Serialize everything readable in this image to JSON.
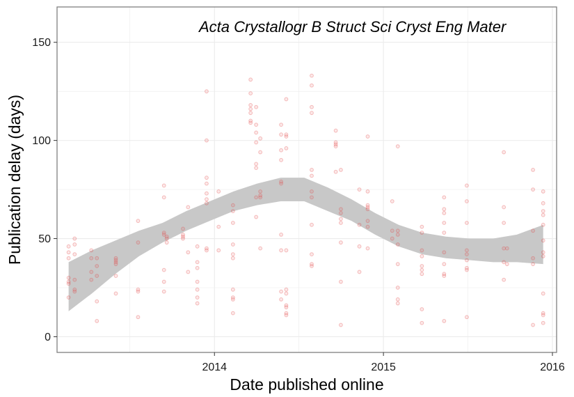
{
  "chart_data": {
    "type": "scatter",
    "title": "Acta Crystallogr B Struct Sci Cryst Eng Mater",
    "xlabel": "Date published online",
    "ylabel": "Publication delay (days)",
    "xlim": [
      "2013-01-26",
      "2016-01-10"
    ],
    "ylim": [
      -8,
      168
    ],
    "x_ticks": [
      {
        "value": "2014-01-01",
        "label": "2014"
      },
      {
        "value": "2015-01-01",
        "label": "2015"
      },
      {
        "value": "2016-01-01",
        "label": "2016"
      }
    ],
    "y_ticks": [
      0,
      50,
      100,
      150
    ],
    "grid": true,
    "legend": "none",
    "colors": {
      "points": "#e34a4a",
      "band": "#c8c8c8",
      "grid": "#ebebeb",
      "border": "#7f7f7f"
    },
    "series": [
      {
        "kind": "points",
        "points": [
          [
            "2013-02-20",
            46
          ],
          [
            "2013-02-20",
            43
          ],
          [
            "2013-02-20",
            40
          ],
          [
            "2013-02-20",
            30
          ],
          [
            "2013-02-20",
            28
          ],
          [
            "2013-02-20",
            27
          ],
          [
            "2013-02-20",
            20
          ],
          [
            "2013-03-05",
            50
          ],
          [
            "2013-03-05",
            47
          ],
          [
            "2013-03-05",
            42
          ],
          [
            "2013-03-05",
            29
          ],
          [
            "2013-03-05",
            24
          ],
          [
            "2013-03-05",
            23
          ],
          [
            "2013-04-10",
            44
          ],
          [
            "2013-04-10",
            40
          ],
          [
            "2013-04-10",
            33
          ],
          [
            "2013-04-10",
            29
          ],
          [
            "2013-04-22",
            40
          ],
          [
            "2013-04-22",
            36
          ],
          [
            "2013-04-22",
            31
          ],
          [
            "2013-04-22",
            18
          ],
          [
            "2013-04-22",
            8
          ],
          [
            "2013-06-02",
            40
          ],
          [
            "2013-06-02",
            39
          ],
          [
            "2013-06-02",
            38
          ],
          [
            "2013-06-02",
            37
          ],
          [
            "2013-06-02",
            31
          ],
          [
            "2013-06-02",
            22
          ],
          [
            "2013-07-20",
            59
          ],
          [
            "2013-07-20",
            48
          ],
          [
            "2013-07-20",
            24
          ],
          [
            "2013-07-20",
            23
          ],
          [
            "2013-07-20",
            10
          ],
          [
            "2013-09-14",
            77
          ],
          [
            "2013-09-14",
            71
          ],
          [
            "2013-09-14",
            53
          ],
          [
            "2013-09-14",
            52
          ],
          [
            "2013-09-14",
            34
          ],
          [
            "2013-09-14",
            28
          ],
          [
            "2013-09-14",
            23
          ],
          [
            "2013-09-20",
            51
          ],
          [
            "2013-09-20",
            50
          ],
          [
            "2013-09-20",
            48
          ],
          [
            "2013-10-25",
            55
          ],
          [
            "2013-10-25",
            52
          ],
          [
            "2013-10-25",
            51
          ],
          [
            "2013-10-25",
            50
          ],
          [
            "2013-11-05",
            66
          ],
          [
            "2013-11-05",
            43
          ],
          [
            "2013-11-05",
            33
          ],
          [
            "2013-11-25",
            46
          ],
          [
            "2013-11-25",
            38
          ],
          [
            "2013-11-25",
            35
          ],
          [
            "2013-11-25",
            28
          ],
          [
            "2013-11-25",
            24
          ],
          [
            "2013-11-25",
            20
          ],
          [
            "2013-11-25",
            17
          ],
          [
            "2013-12-15",
            125
          ],
          [
            "2013-12-15",
            100
          ],
          [
            "2013-12-15",
            81
          ],
          [
            "2013-12-15",
            78
          ],
          [
            "2013-12-15",
            73
          ],
          [
            "2013-12-15",
            70
          ],
          [
            "2013-12-15",
            68
          ],
          [
            "2013-12-15",
            45
          ],
          [
            "2013-12-15",
            44
          ],
          [
            "2014-01-10",
            74
          ],
          [
            "2014-01-10",
            56
          ],
          [
            "2014-01-10",
            44
          ],
          [
            "2014-02-10",
            67
          ],
          [
            "2014-02-10",
            64
          ],
          [
            "2014-02-10",
            58
          ],
          [
            "2014-02-10",
            47
          ],
          [
            "2014-02-10",
            42
          ],
          [
            "2014-02-10",
            40
          ],
          [
            "2014-02-10",
            24
          ],
          [
            "2014-02-10",
            20
          ],
          [
            "2014-02-10",
            19
          ],
          [
            "2014-02-10",
            12
          ],
          [
            "2014-03-20",
            131
          ],
          [
            "2014-03-20",
            124
          ],
          [
            "2014-03-20",
            118
          ],
          [
            "2014-03-20",
            116
          ],
          [
            "2014-03-20",
            114
          ],
          [
            "2014-03-20",
            110
          ],
          [
            "2014-03-20",
            109
          ],
          [
            "2014-04-01",
            117
          ],
          [
            "2014-04-01",
            108
          ],
          [
            "2014-04-01",
            104
          ],
          [
            "2014-04-01",
            99
          ],
          [
            "2014-04-01",
            88
          ],
          [
            "2014-04-01",
            86
          ],
          [
            "2014-04-01",
            71
          ],
          [
            "2014-04-01",
            61
          ],
          [
            "2014-04-10",
            101
          ],
          [
            "2014-04-10",
            94
          ],
          [
            "2014-04-10",
            74
          ],
          [
            "2014-04-10",
            72
          ],
          [
            "2014-04-10",
            71
          ],
          [
            "2014-04-10",
            45
          ],
          [
            "2014-05-25",
            108
          ],
          [
            "2014-05-25",
            103
          ],
          [
            "2014-05-25",
            95
          ],
          [
            "2014-05-25",
            90
          ],
          [
            "2014-05-25",
            79
          ],
          [
            "2014-05-25",
            78
          ],
          [
            "2014-05-25",
            52
          ],
          [
            "2014-05-25",
            44
          ],
          [
            "2014-05-25",
            23
          ],
          [
            "2014-05-25",
            19
          ],
          [
            "2014-06-05",
            121
          ],
          [
            "2014-06-05",
            103
          ],
          [
            "2014-06-05",
            102
          ],
          [
            "2014-06-05",
            96
          ],
          [
            "2014-06-05",
            44
          ],
          [
            "2014-06-05",
            24
          ],
          [
            "2014-06-05",
            22
          ],
          [
            "2014-06-05",
            16
          ],
          [
            "2014-06-05",
            15
          ],
          [
            "2014-06-05",
            12
          ],
          [
            "2014-06-05",
            11
          ],
          [
            "2014-07-30",
            133
          ],
          [
            "2014-07-30",
            128
          ],
          [
            "2014-07-30",
            117
          ],
          [
            "2014-07-30",
            114
          ],
          [
            "2014-07-30",
            85
          ],
          [
            "2014-07-30",
            82
          ],
          [
            "2014-07-30",
            74
          ],
          [
            "2014-07-30",
            71
          ],
          [
            "2014-07-30",
            57
          ],
          [
            "2014-07-30",
            42
          ],
          [
            "2014-07-30",
            37
          ],
          [
            "2014-07-30",
            36
          ],
          [
            "2014-09-20",
            105
          ],
          [
            "2014-09-20",
            99
          ],
          [
            "2014-09-20",
            98
          ],
          [
            "2014-09-20",
            97
          ],
          [
            "2014-09-20",
            84
          ],
          [
            "2014-10-01",
            85
          ],
          [
            "2014-10-01",
            65
          ],
          [
            "2014-10-01",
            63
          ],
          [
            "2014-10-01",
            60
          ],
          [
            "2014-10-01",
            58
          ],
          [
            "2014-10-01",
            48
          ],
          [
            "2014-10-01",
            28
          ],
          [
            "2014-10-01",
            6
          ],
          [
            "2014-11-10",
            75
          ],
          [
            "2014-11-10",
            57
          ],
          [
            "2014-11-10",
            46
          ],
          [
            "2014-11-10",
            33
          ],
          [
            "2014-11-28",
            102
          ],
          [
            "2014-11-28",
            74
          ],
          [
            "2014-11-28",
            67
          ],
          [
            "2014-11-28",
            66
          ],
          [
            "2014-11-28",
            65
          ],
          [
            "2014-11-28",
            59
          ],
          [
            "2014-11-28",
            56
          ],
          [
            "2014-11-28",
            45
          ],
          [
            "2015-01-20",
            69
          ],
          [
            "2015-01-20",
            54
          ],
          [
            "2015-01-20",
            50
          ],
          [
            "2015-02-01",
            97
          ],
          [
            "2015-02-01",
            54
          ],
          [
            "2015-02-01",
            52
          ],
          [
            "2015-02-01",
            47
          ],
          [
            "2015-02-01",
            37
          ],
          [
            "2015-02-01",
            25
          ],
          [
            "2015-02-01",
            19
          ],
          [
            "2015-02-01",
            17
          ],
          [
            "2015-03-25",
            56
          ],
          [
            "2015-03-25",
            53
          ],
          [
            "2015-03-25",
            44
          ],
          [
            "2015-03-25",
            41
          ],
          [
            "2015-03-25",
            36
          ],
          [
            "2015-03-25",
            34
          ],
          [
            "2015-03-25",
            32
          ],
          [
            "2015-03-25",
            14
          ],
          [
            "2015-03-25",
            7
          ],
          [
            "2015-05-12",
            71
          ],
          [
            "2015-05-12",
            65
          ],
          [
            "2015-05-12",
            63
          ],
          [
            "2015-05-12",
            58
          ],
          [
            "2015-05-12",
            53
          ],
          [
            "2015-05-12",
            43
          ],
          [
            "2015-05-12",
            37
          ],
          [
            "2015-05-12",
            32
          ],
          [
            "2015-05-12",
            31
          ],
          [
            "2015-05-12",
            8
          ],
          [
            "2015-06-30",
            77
          ],
          [
            "2015-06-30",
            69
          ],
          [
            "2015-06-30",
            58
          ],
          [
            "2015-06-30",
            44
          ],
          [
            "2015-06-30",
            42
          ],
          [
            "2015-06-30",
            39
          ],
          [
            "2015-06-30",
            35
          ],
          [
            "2015-06-30",
            34
          ],
          [
            "2015-06-30",
            10
          ],
          [
            "2015-09-18",
            94
          ],
          [
            "2015-09-18",
            66
          ],
          [
            "2015-09-18",
            58
          ],
          [
            "2015-09-18",
            45
          ],
          [
            "2015-09-18",
            38
          ],
          [
            "2015-09-18",
            29
          ],
          [
            "2015-09-25",
            45
          ],
          [
            "2015-09-25",
            37
          ],
          [
            "2015-11-20",
            85
          ],
          [
            "2015-11-20",
            75
          ],
          [
            "2015-11-20",
            54
          ],
          [
            "2015-11-20",
            40
          ],
          [
            "2015-11-20",
            37
          ],
          [
            "2015-11-20",
            6
          ],
          [
            "2015-12-12",
            74
          ],
          [
            "2015-12-12",
            68
          ],
          [
            "2015-12-12",
            64
          ],
          [
            "2015-12-12",
            62
          ],
          [
            "2015-12-12",
            57
          ],
          [
            "2015-12-12",
            49
          ],
          [
            "2015-12-12",
            43
          ],
          [
            "2015-12-12",
            41
          ],
          [
            "2015-12-12",
            22
          ],
          [
            "2015-12-12",
            12
          ],
          [
            "2015-12-12",
            11
          ],
          [
            "2015-12-12",
            7
          ]
        ]
      },
      {
        "kind": "confidence-band",
        "points": [
          [
            "2013-02-20",
            13,
            38
          ],
          [
            "2013-04-11",
            22,
            44
          ],
          [
            "2013-06-01",
            32,
            49
          ],
          [
            "2013-07-22",
            41,
            54
          ],
          [
            "2013-09-11",
            48,
            58
          ],
          [
            "2013-11-01",
            54,
            64
          ],
          [
            "2013-12-22",
            59,
            69
          ],
          [
            "2014-02-11",
            64,
            74
          ],
          [
            "2014-04-03",
            67,
            78
          ],
          [
            "2014-05-24",
            69,
            81
          ],
          [
            "2014-07-14",
            69,
            81
          ],
          [
            "2014-09-03",
            64,
            76
          ],
          [
            "2014-10-24",
            59,
            70
          ],
          [
            "2014-12-14",
            52,
            63
          ],
          [
            "2015-02-03",
            46,
            57
          ],
          [
            "2015-03-26",
            42,
            53
          ],
          [
            "2015-05-16",
            40,
            51
          ],
          [
            "2015-07-06",
            39,
            50
          ],
          [
            "2015-08-26",
            38,
            50
          ],
          [
            "2015-10-16",
            38,
            52
          ],
          [
            "2015-12-12",
            37,
            57
          ]
        ]
      }
    ]
  }
}
